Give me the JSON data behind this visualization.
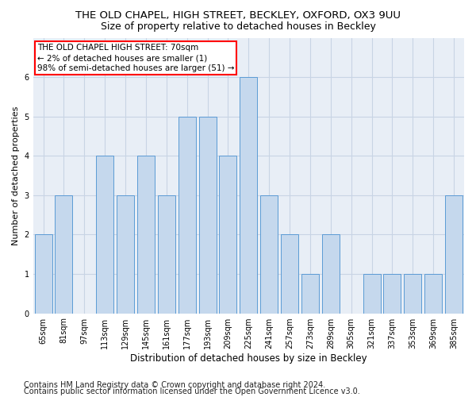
{
  "title": "THE OLD CHAPEL, HIGH STREET, BECKLEY, OXFORD, OX3 9UU",
  "subtitle": "Size of property relative to detached houses in Beckley",
  "xlabel": "Distribution of detached houses by size in Beckley",
  "ylabel": "Number of detached properties",
  "categories": [
    "65sqm",
    "81sqm",
    "97sqm",
    "113sqm",
    "129sqm",
    "145sqm",
    "161sqm",
    "177sqm",
    "193sqm",
    "209sqm",
    "225sqm",
    "241sqm",
    "257sqm",
    "273sqm",
    "289sqm",
    "305sqm",
    "321sqm",
    "337sqm",
    "353sqm",
    "369sqm",
    "385sqm"
  ],
  "values": [
    2,
    3,
    0,
    4,
    3,
    4,
    3,
    5,
    5,
    4,
    6,
    3,
    2,
    1,
    2,
    0,
    1,
    1,
    1,
    1,
    3
  ],
  "bar_color": "#c5d8ed",
  "bar_edgecolor": "#5b9bd5",
  "annotation_title": "THE OLD CHAPEL HIGH STREET: 70sqm",
  "annotation_line1": "← 2% of detached houses are smaller (1)",
  "annotation_line2": "98% of semi-detached houses are larger (51) →",
  "annotation_box_edgecolor": "red",
  "footer1": "Contains HM Land Registry data © Crown copyright and database right 2024.",
  "footer2": "Contains public sector information licensed under the Open Government Licence v3.0.",
  "ylim": [
    0,
    7
  ],
  "yticks": [
    0,
    1,
    2,
    3,
    4,
    5,
    6
  ],
  "grid_color": "#c8d4e4",
  "bg_color": "#e8eef6",
  "title_fontsize": 9.5,
  "subtitle_fontsize": 9,
  "xlabel_fontsize": 8.5,
  "ylabel_fontsize": 8,
  "tick_fontsize": 7,
  "annotation_fontsize": 7.5,
  "footer_fontsize": 7
}
